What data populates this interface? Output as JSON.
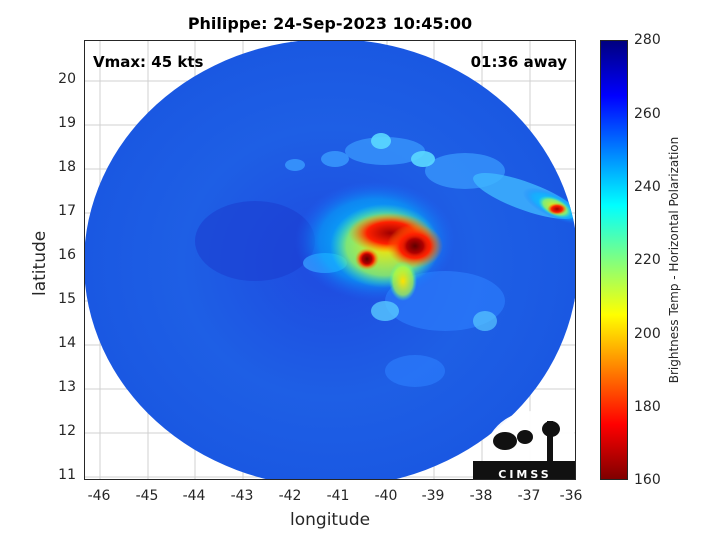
{
  "title": "Philippe: 24-Sep-2023 10:45:00",
  "annotations": {
    "vmax": "Vmax: 45 kts",
    "time_away": "01:36 away"
  },
  "axes": {
    "xlabel": "longitude",
    "ylabel": "latitude",
    "xticks": [
      "-46",
      "-45",
      "-44",
      "-43",
      "-42",
      "-41",
      "-40",
      "-39",
      "-38",
      "-37",
      "-36"
    ],
    "yticks": [
      "20",
      "19",
      "18",
      "17",
      "16",
      "15",
      "14",
      "13",
      "12",
      "11"
    ],
    "xlim": [
      -46.3,
      -36
    ],
    "ylim": [
      10.9,
      20.9
    ]
  },
  "colorbar": {
    "label": "Brightness Temp - Horizontal Polarization",
    "ticks": [
      "280",
      "260",
      "240",
      "220",
      "200",
      "180",
      "160"
    ],
    "range": [
      160,
      280
    ],
    "colormap": "jet"
  },
  "logo": {
    "text": "CIMSS"
  },
  "chart_data": {
    "type": "heatmap",
    "title": "Philippe: 24-Sep-2023 10:45:00",
    "xlabel": "longitude",
    "ylabel": "latitude",
    "xlim": [
      -46.3,
      -36
    ],
    "ylim": [
      10.9,
      20.9
    ],
    "colorbar_label": "Brightness Temp - Horizontal Polarization",
    "clim": [
      160,
      280
    ],
    "grid": true
  },
  "colors": {
    "background_ocean": "#1a4fd8",
    "cold_core": "#7a0000",
    "warm_band": "#ff2000"
  }
}
